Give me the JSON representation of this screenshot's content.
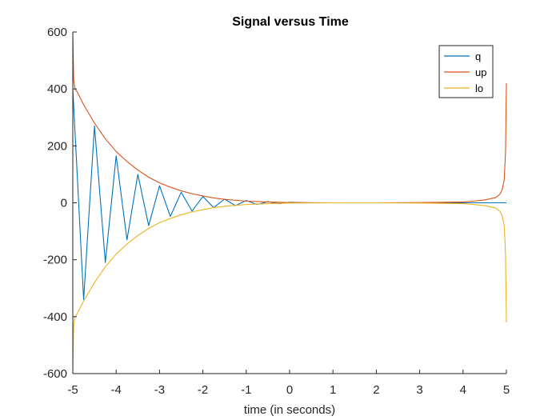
{
  "chart_data": {
    "type": "line",
    "title": "Signal versus Time",
    "xlabel": "time (in seconds)",
    "ylabel": "",
    "xlim": [
      -5,
      5
    ],
    "ylim": [
      -600,
      600
    ],
    "xticks": [
      -5,
      -4,
      -3,
      -2,
      -1,
      0,
      1,
      2,
      3,
      4,
      5
    ],
    "yticks": [
      -600,
      -400,
      -200,
      0,
      200,
      400,
      600
    ],
    "grid": false,
    "legend_position": "top-right",
    "series": [
      {
        "name": "q",
        "color": "#0072BD",
        "x": [
          -5.0,
          -4.75,
          -4.5,
          -4.25,
          -4.0,
          -3.75,
          -3.5,
          -3.25,
          -3.0,
          -2.75,
          -2.5,
          -2.25,
          -2.0,
          -1.75,
          -1.5,
          -1.25,
          -1.0,
          -0.75,
          -0.5,
          -0.25,
          0.0,
          0.5,
          1.0,
          2.0,
          3.0,
          4.0,
          4.5,
          5.0
        ],
        "y": [
          400,
          -340,
          270,
          -210,
          165,
          -130,
          100,
          -80,
          60,
          -48,
          37,
          -29,
          22,
          -17,
          13,
          -10,
          8,
          -6,
          4,
          -3,
          2,
          0,
          0,
          0,
          0,
          0,
          0,
          0
        ]
      },
      {
        "name": "up",
        "color": "#D95319",
        "x": [
          -5.0,
          -4.98,
          -4.95,
          -4.9,
          -4.75,
          -4.5,
          -4.25,
          -4.0,
          -3.75,
          -3.5,
          -3.25,
          -3.0,
          -2.75,
          -2.5,
          -2.25,
          -2.0,
          -1.75,
          -1.5,
          -1.0,
          -0.5,
          0.0,
          1.0,
          2.0,
          3.0,
          3.5,
          4.0,
          4.25,
          4.5,
          4.75,
          4.85,
          4.9,
          4.95,
          4.98,
          5.0
        ],
        "y": [
          600,
          430,
          400,
          390,
          345,
          280,
          225,
          180,
          145,
          115,
          90,
          70,
          55,
          42,
          32,
          24,
          17,
          12,
          6,
          3,
          1,
          0,
          0,
          1,
          2,
          3,
          6,
          10,
          18,
          30,
          45,
          80,
          180,
          420
        ]
      },
      {
        "name": "lo",
        "color": "#EDB120",
        "x": [
          -5.0,
          -4.98,
          -4.95,
          -4.9,
          -4.75,
          -4.5,
          -4.25,
          -4.0,
          -3.75,
          -3.5,
          -3.25,
          -3.0,
          -2.75,
          -2.5,
          -2.25,
          -2.0,
          -1.75,
          -1.5,
          -1.0,
          -0.5,
          0.0,
          1.0,
          2.0,
          3.0,
          3.5,
          4.0,
          4.25,
          4.5,
          4.75,
          4.85,
          4.9,
          4.95,
          4.98,
          5.0
        ],
        "y": [
          -600,
          -430,
          -400,
          -390,
          -345,
          -280,
          -225,
          -180,
          -145,
          -115,
          -90,
          -70,
          -55,
          -42,
          -32,
          -24,
          -17,
          -12,
          -6,
          -3,
          -1,
          0,
          0,
          -1,
          -2,
          -3,
          -6,
          -10,
          -18,
          -30,
          -45,
          -80,
          -180,
          -420
        ]
      }
    ]
  }
}
